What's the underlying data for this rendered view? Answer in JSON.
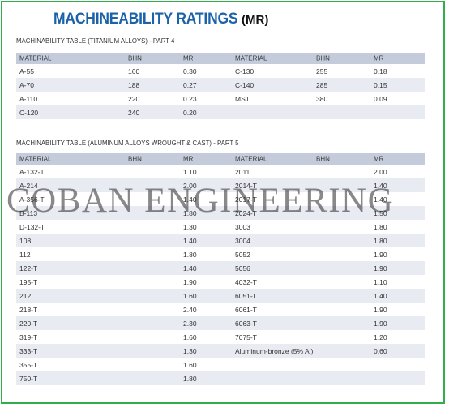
{
  "title": {
    "main": "MACHINEABILITY RATINGS",
    "sub": "(MR)"
  },
  "watermark": "COBAN ENGINEERING",
  "colors": {
    "border": "#2fae4a",
    "title": "#1b62a8",
    "header_bg": "#c4ccdb",
    "shaded_row": "#e9ebf2"
  },
  "table1": {
    "caption": "MACHINABILITY TABLE (TITANIUM ALLOYS) - PART 4",
    "headers": [
      "MATERIAL",
      "BHN",
      "MR",
      "MATERIAL",
      "BHN",
      "MR"
    ],
    "rows": [
      [
        "A-55",
        "160",
        "0.30",
        "C-130",
        "255",
        "0.18"
      ],
      [
        "A-70",
        "188",
        "0.27",
        "C-140",
        "285",
        "0.15"
      ],
      [
        "A-110",
        "220",
        "0.23",
        "MST",
        "380",
        "0.09"
      ],
      [
        "C-120",
        "240",
        "0.20",
        "",
        "",
        ""
      ]
    ]
  },
  "table2": {
    "caption": "MACHINABILITY TABLE (ALUMINUM ALLOYS WROUGHT & CAST) - PART 5",
    "headers": [
      "MATERIAL",
      "BHN",
      "MR",
      "MATERIAL",
      "BHN",
      "MR"
    ],
    "rows": [
      [
        "A-132-T",
        "",
        "1.10",
        "2011",
        "",
        "2.00"
      ],
      [
        "A-214",
        "",
        "2.00",
        "2014-T",
        "",
        "1.40"
      ],
      [
        "A-356-T",
        "",
        "1.40",
        "2017-T",
        "",
        "1.40"
      ],
      [
        "B-113",
        "",
        "1.80",
        "2024-T",
        "",
        "1.50"
      ],
      [
        "D-132-T",
        "",
        "1.30",
        "3003",
        "",
        "1.80"
      ],
      [
        "108",
        "",
        "1.40",
        "3004",
        "",
        "1.80"
      ],
      [
        "112",
        "",
        "1.80",
        "5052",
        "",
        "1.90"
      ],
      [
        "122-T",
        "",
        "1.40",
        "5056",
        "",
        "1.90"
      ],
      [
        "195-T",
        "",
        "1.90",
        "4032-T",
        "",
        "1.10"
      ],
      [
        "212",
        "",
        "1.60",
        "6051-T",
        "",
        "1.40"
      ],
      [
        "218-T",
        "",
        "2.40",
        "6061-T",
        "",
        "1.90"
      ],
      [
        "220-T",
        "",
        "2.30",
        "6063-T",
        "",
        "1.90"
      ],
      [
        "319-T",
        "",
        "1.60",
        "7075-T",
        "",
        "1.20"
      ],
      [
        "333-T",
        "",
        "1.30",
        "Aluminum-bronze (5% Al)",
        "",
        "0.60"
      ],
      [
        "355-T",
        "",
        "1.60",
        "",
        "",
        ""
      ],
      [
        "750-T",
        "",
        "1.80",
        "",
        "",
        ""
      ]
    ]
  }
}
